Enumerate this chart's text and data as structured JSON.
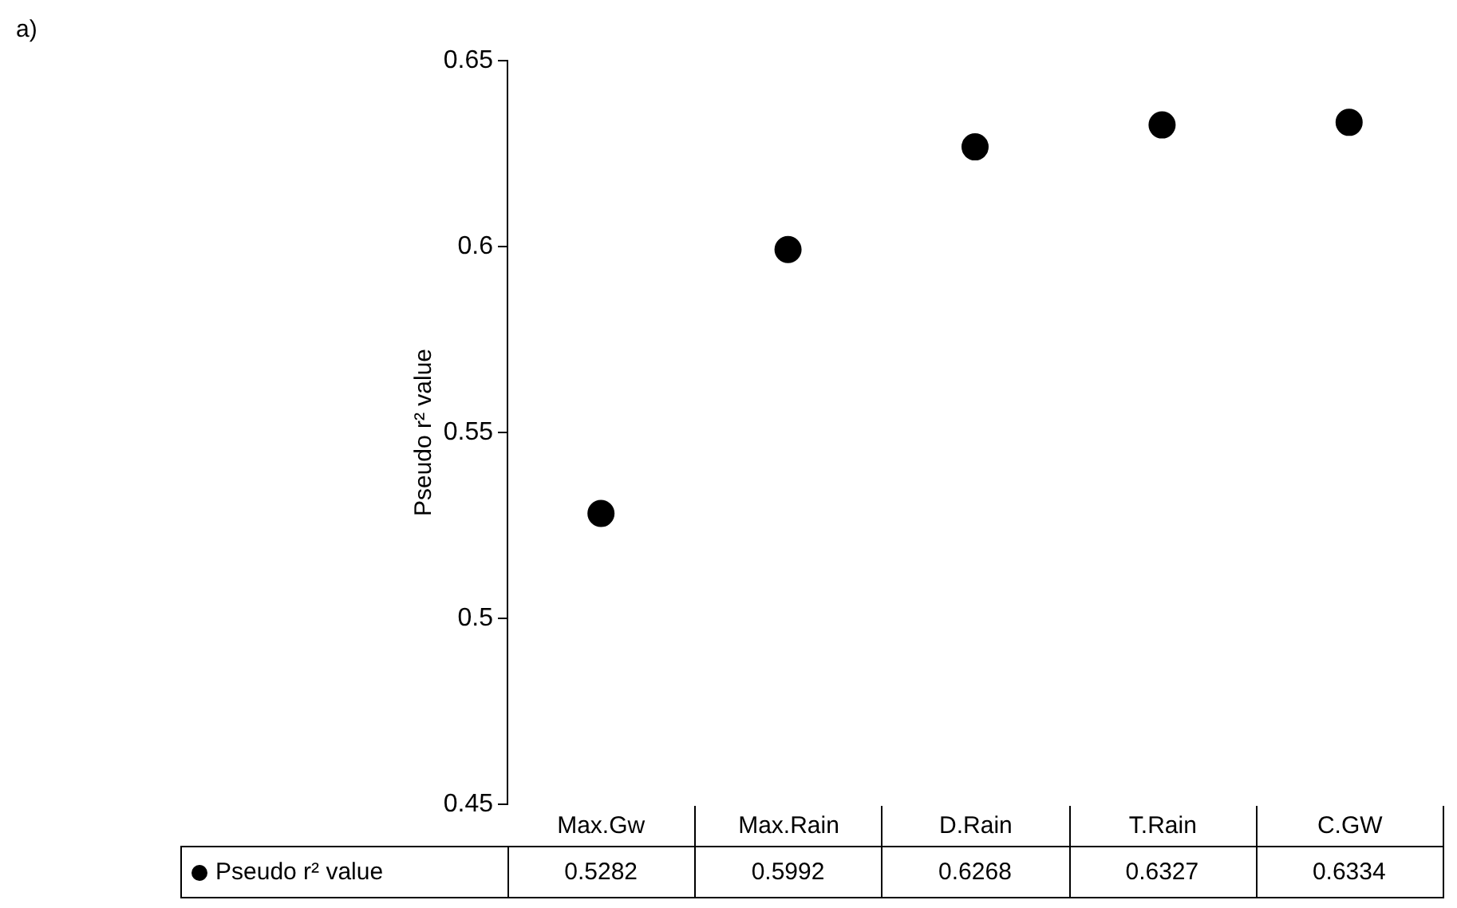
{
  "chart_data": {
    "type": "scatter",
    "ylabel": "Pseudo r² value",
    "annotations": [
      "a)"
    ],
    "categories": [
      "Max.Gw",
      "Max.Rain",
      "D.Rain",
      "T.Rain",
      "C.GW"
    ],
    "series": [
      {
        "name": "Pseudo r² value",
        "color": "#000000",
        "values": [
          0.5282,
          0.5992,
          0.6268,
          0.6327,
          0.6334
        ]
      }
    ],
    "ylim": [
      0.45,
      0.65
    ],
    "yticks": [
      0.45,
      0.5,
      0.55,
      0.6,
      0.65
    ],
    "data_labels": true,
    "marker": "circle"
  }
}
